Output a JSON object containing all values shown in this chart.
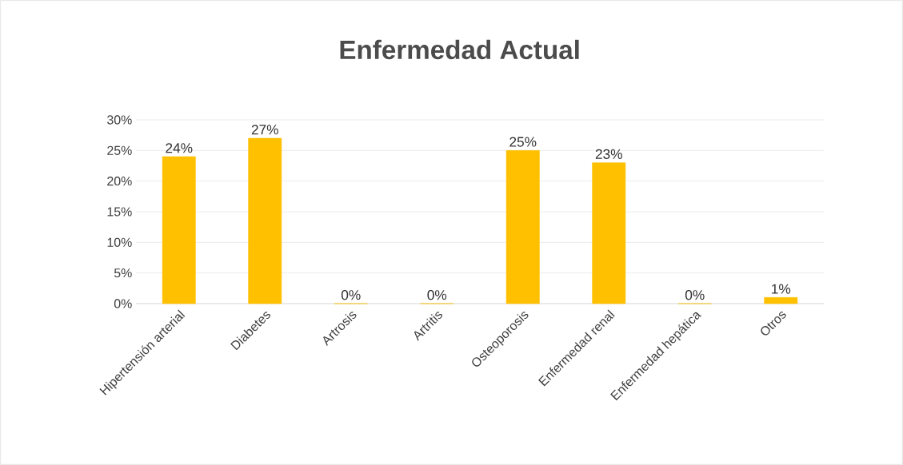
{
  "chart_data": {
    "type": "bar",
    "title": "Enfermedad Actual",
    "categories": [
      "Hipertensión arterial",
      "Diabetes",
      "Artrosis",
      "Artritis",
      "Osteoporosis",
      "Enfermedad renal",
      "Enfermedad hepática",
      "Otros"
    ],
    "values": [
      24,
      27,
      0,
      0,
      25,
      23,
      0,
      1
    ],
    "value_labels": [
      "24%",
      "27%",
      "0%",
      "0%",
      "25%",
      "23%",
      "0%",
      "1%"
    ],
    "color": "#ffc000",
    "ylim": [
      0,
      30
    ],
    "yticks": [
      {
        "value": 0,
        "label": "0%"
      },
      {
        "value": 5,
        "label": "5%"
      },
      {
        "value": 10,
        "label": "10%"
      },
      {
        "value": 15,
        "label": "15%"
      },
      {
        "value": 20,
        "label": "20%"
      },
      {
        "value": 25,
        "label": "25%"
      },
      {
        "value": 30,
        "label": "30%"
      }
    ],
    "grid": "y"
  }
}
